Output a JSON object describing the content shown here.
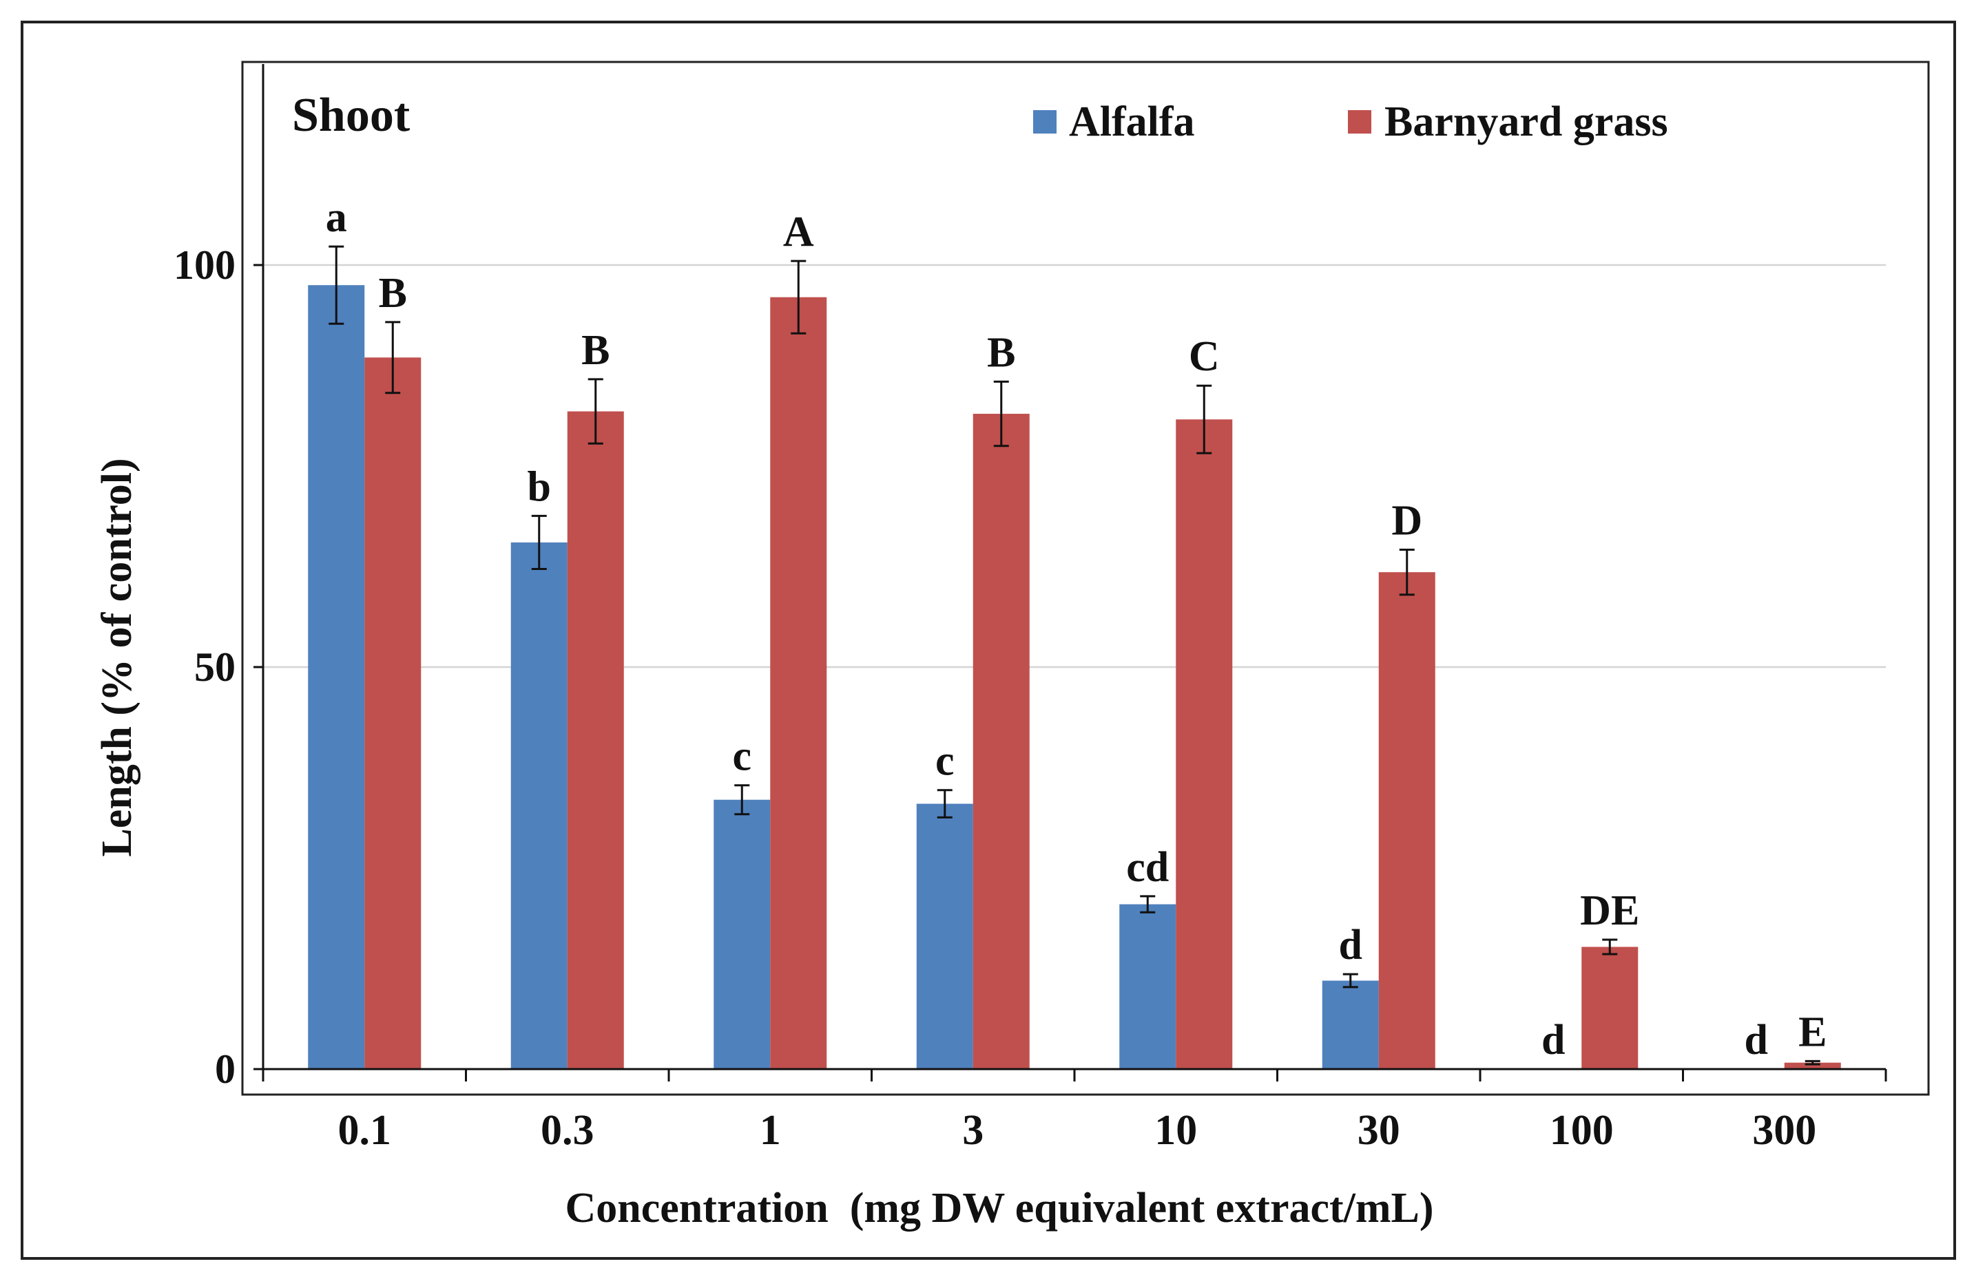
{
  "chart_data": {
    "type": "bar",
    "panel_label": "Shoot",
    "xlabel": "Concentration  (mg DW equivalent extract/mL)",
    "ylabel": "Length (% of control)",
    "ylim": [
      0,
      125
    ],
    "yticks": [
      0,
      50,
      100
    ],
    "grid": true,
    "legend_position": "top-right",
    "categories": [
      "0.1",
      "0.3",
      "1",
      "3",
      "10",
      "30",
      "100",
      "300"
    ],
    "series": [
      {
        "name": "Alfalfa",
        "color": "#4f81bd",
        "values": [
          97.5,
          65.5,
          33.5,
          33,
          20.5,
          11,
          0,
          0
        ],
        "errors": [
          4.8,
          3.3,
          1.8,
          1.7,
          1.0,
          0.8,
          0,
          0
        ],
        "letters": [
          "a",
          "b",
          "c",
          "c",
          "cd",
          "d",
          "d",
          "d"
        ]
      },
      {
        "name": "Barnyard grass",
        "color": "#c0504d",
        "values": [
          88.5,
          81.8,
          96,
          81.5,
          80.8,
          61.8,
          15.2,
          0.8
        ],
        "errors": [
          4.4,
          4.0,
          4.5,
          4.0,
          4.2,
          2.8,
          0.9,
          0.2
        ],
        "letters": [
          "B",
          "B",
          "A",
          "B",
          "C",
          "D",
          "DE",
          "E"
        ]
      }
    ]
  }
}
